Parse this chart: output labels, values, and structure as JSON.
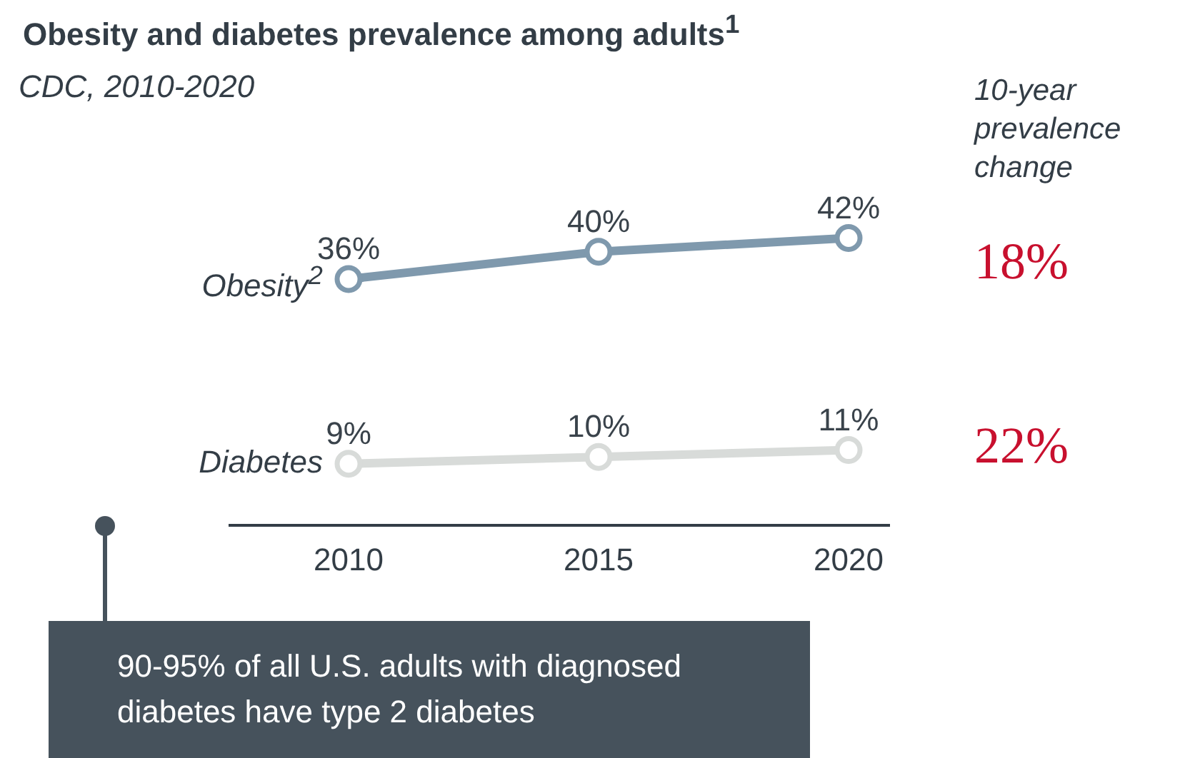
{
  "chart_data": {
    "type": "line",
    "title": "Obesity and diabetes prevalence among adults$^{1}$",
    "subtitle": "CDC, 2010-2020",
    "categories": [
      "2010",
      "2015",
      "2020"
    ],
    "series": [
      {
        "name": "Obesity$^{2}$",
        "color": "#7f99ad",
        "values": [
          36,
          40,
          42
        ],
        "value_labels": [
          "36%",
          "40%",
          "42%"
        ]
      },
      {
        "name": "Diabetes",
        "color": "#d8dbd9",
        "values": [
          9,
          10,
          11
        ],
        "value_labels": [
          "9%",
          "10%",
          "11%"
        ]
      }
    ],
    "tick_labels": "x",
    "marker": "circle",
    "line_style": "solid",
    "legend": false,
    "grid": false,
    "annotations": [
      "10-year prevalence change",
      "18%",
      "22%",
      "90-95% of all U.S. adults with diagnosed diabetes have type 2 diabetes"
    ]
  }
}
